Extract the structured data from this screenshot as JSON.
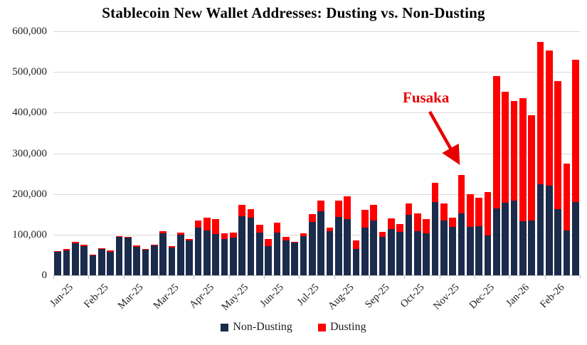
{
  "title": "Stablecoin New Wallet Addresses: Dusting vs. Non-Dusting",
  "annotation": {
    "label": "Fusaka",
    "color": "#e80000"
  },
  "legend": [
    {
      "label": "Non-Dusting",
      "color": "#1b2b4b"
    },
    {
      "label": "Dusting",
      "color": "#fe0000"
    }
  ],
  "colors": {
    "non_dusting": "#1b2b4b",
    "dusting": "#fe0000",
    "gridline": "#d9d9d9",
    "annotation": "#e80000"
  },
  "chart_data": {
    "type": "bar",
    "stacked": true,
    "title": "Stablecoin New Wallet Addresses: Dusting vs. Non-Dusting",
    "xlabel": "",
    "ylabel": "",
    "ylim": [
      0,
      600000
    ],
    "grid": "horizontal",
    "legend_position": "bottom",
    "y_tick_values": [
      0,
      100000,
      200000,
      300000,
      400000,
      500000,
      600000
    ],
    "y_tick_labels": [
      "0",
      "100,000",
      "200,000",
      "300,000",
      "400,000",
      "500,000",
      "600,000"
    ],
    "x_tick_labels": [
      "Jan-25",
      "Feb-25",
      "Mar-25",
      "Mar-25",
      "Apr-25",
      "May-25",
      "Jun-25",
      "Jul-25",
      "Aug-25",
      "Sep-25",
      "Oct-25",
      "Nov-25",
      "Dec-25",
      "Jan-26",
      "Feb-26"
    ],
    "x_label_every_n_bars": 4,
    "bars_per_label_group": 4,
    "annotation_target": "week 47 bar (Dec-25, ~246,000 total)",
    "series": [
      {
        "name": "Non-Dusting",
        "color": "#1b2b4b",
        "values": [
          58000,
          62000,
          79000,
          71000,
          49000,
          65000,
          58000,
          94000,
          93000,
          70000,
          63000,
          73000,
          104000,
          69000,
          100000,
          86000,
          117000,
          111000,
          101000,
          89000,
          93000,
          146000,
          142000,
          105000,
          71000,
          105000,
          85000,
          80000,
          96000,
          132000,
          157000,
          108000,
          143000,
          138000,
          65000,
          118000,
          135000,
          94000,
          114000,
          106000,
          149000,
          108000,
          104000,
          180000,
          135000,
          119000,
          153000,
          119000,
          120000,
          98000,
          164000,
          178000,
          183000,
          133000,
          135000,
          224000,
          220000,
          163000,
          110000,
          180000
        ]
      },
      {
        "name": "Dusting",
        "color": "#fe0000",
        "values": [
          2000,
          2000,
          3000,
          4000,
          1000,
          2000,
          3000,
          3000,
          2000,
          3000,
          2000,
          3000,
          4000,
          3000,
          5000,
          3000,
          18000,
          30000,
          38000,
          15000,
          12000,
          28000,
          20000,
          20000,
          19000,
          25000,
          9000,
          3000,
          8000,
          19000,
          27000,
          9000,
          41000,
          56000,
          20000,
          43000,
          38000,
          12000,
          26000,
          20000,
          28000,
          45000,
          34000,
          48000,
          42000,
          22000,
          93000,
          80000,
          71000,
          106000,
          326000,
          274000,
          245000,
          303000,
          258000,
          349000,
          333000,
          315000,
          164000,
          350000
        ]
      }
    ]
  }
}
